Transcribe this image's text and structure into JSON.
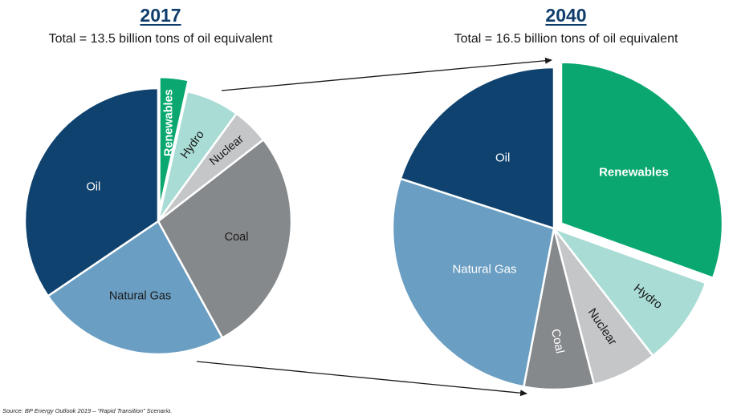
{
  "source_note": "Source: BP Energy Outlook 2019 – “Rapid Transition” Scenario.",
  "chart_data": [
    {
      "type": "pie",
      "title": "2017",
      "subtitle": "Total = 13.5 billion tons of oil equivalent",
      "slices": [
        {
          "label": "Renewables",
          "value": 3.5,
          "color": "#0aa870",
          "exploded": true
        },
        {
          "label": "Hydro",
          "value": 6.5,
          "color": "#a8dcd4"
        },
        {
          "label": "Nuclear",
          "value": 4.5,
          "color": "#c4c6c8"
        },
        {
          "label": "Coal",
          "value": 27.5,
          "color": "#85898c"
        },
        {
          "label": "Natural Gas",
          "value": 23.5,
          "color": "#6a9ec2"
        },
        {
          "label": "Oil",
          "value": 34.5,
          "color": "#0f426e"
        }
      ]
    },
    {
      "type": "pie",
      "title": "2040",
      "subtitle": "Total = 16.5 billion tons of oil equivalent",
      "slices": [
        {
          "label": "Renewables",
          "value": 30.5,
          "color": "#0aa870",
          "exploded": true
        },
        {
          "label": "Hydro",
          "value": 9,
          "color": "#a8dcd4"
        },
        {
          "label": "Nuclear",
          "value": 6.5,
          "color": "#c4c6c8"
        },
        {
          "label": "Coal",
          "value": 7,
          "color": "#85898c"
        },
        {
          "label": "Natural Gas",
          "value": 27,
          "color": "#6a9ec2"
        },
        {
          "label": "Oil",
          "value": 20,
          "color": "#0f426e"
        }
      ]
    }
  ]
}
